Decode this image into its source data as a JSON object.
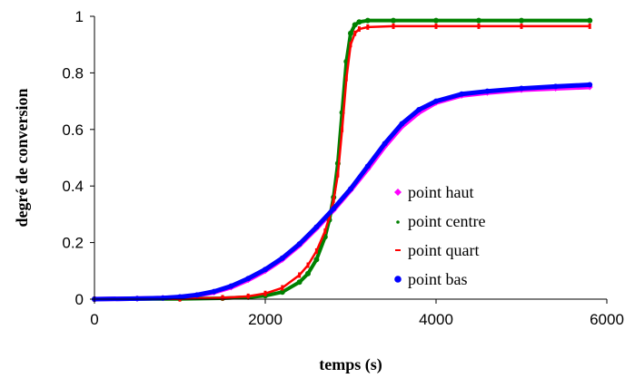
{
  "chart_data": {
    "type": "scatter",
    "title": "",
    "xlabel": "temps (s)",
    "ylabel": "degré de conversion",
    "xlim": [
      0,
      6000
    ],
    "ylim": [
      0,
      1
    ],
    "x_ticks": [
      "0",
      "2000",
      "4000",
      "6000"
    ],
    "y_ticks": [
      "0",
      "0.2",
      "0.4",
      "0.6",
      "0.8",
      "1"
    ],
    "grid": false,
    "legend_position": "right",
    "series": [
      {
        "name": "point haut",
        "color": "#ff00ff",
        "marker": "diamond",
        "x": [
          0,
          500,
          800,
          1000,
          1200,
          1400,
          1600,
          1800,
          2000,
          2200,
          2400,
          2600,
          2800,
          3000,
          3200,
          3400,
          3600,
          3800,
          4000,
          4300,
          4600,
          5000,
          5400,
          5800
        ],
        "y": [
          0,
          0.002,
          0.004,
          0.007,
          0.013,
          0.024,
          0.042,
          0.068,
          0.1,
          0.14,
          0.19,
          0.25,
          0.315,
          0.385,
          0.46,
          0.54,
          0.61,
          0.66,
          0.695,
          0.72,
          0.73,
          0.74,
          0.745,
          0.75
        ]
      },
      {
        "name": "point centre",
        "color": "#008000",
        "marker": "circle",
        "x": [
          0,
          1000,
          1500,
          1800,
          2000,
          2200,
          2400,
          2500,
          2600,
          2700,
          2750,
          2800,
          2850,
          2900,
          2950,
          3000,
          3050,
          3100,
          3200,
          3500,
          4000,
          4500,
          5000,
          5800
        ],
        "y": [
          0,
          0.001,
          0.003,
          0.007,
          0.012,
          0.025,
          0.06,
          0.09,
          0.14,
          0.22,
          0.28,
          0.36,
          0.48,
          0.66,
          0.84,
          0.94,
          0.97,
          0.98,
          0.985,
          0.985,
          0.985,
          0.985,
          0.985,
          0.985
        ]
      },
      {
        "name": "point quart",
        "color": "#ff0000",
        "marker": "dash",
        "x": [
          0,
          1000,
          1500,
          1800,
          2000,
          2200,
          2400,
          2500,
          2600,
          2700,
          2750,
          2800,
          2850,
          2900,
          2950,
          3000,
          3050,
          3100,
          3200,
          3500,
          4000,
          4500,
          5000,
          5800
        ],
        "y": [
          0,
          0.001,
          0.005,
          0.01,
          0.02,
          0.04,
          0.085,
          0.12,
          0.17,
          0.24,
          0.29,
          0.35,
          0.44,
          0.6,
          0.78,
          0.9,
          0.94,
          0.955,
          0.962,
          0.965,
          0.965,
          0.965,
          0.965,
          0.965
        ]
      },
      {
        "name": "point bas",
        "color": "#0000ff",
        "marker": "circle",
        "x": [
          0,
          500,
          800,
          1000,
          1200,
          1400,
          1600,
          1800,
          2000,
          2200,
          2400,
          2600,
          2800,
          3000,
          3200,
          3400,
          3600,
          3800,
          4000,
          4300,
          4600,
          5000,
          5400,
          5800
        ],
        "y": [
          0,
          0.002,
          0.004,
          0.008,
          0.015,
          0.027,
          0.046,
          0.073,
          0.105,
          0.145,
          0.195,
          0.255,
          0.32,
          0.39,
          0.47,
          0.55,
          0.62,
          0.67,
          0.7,
          0.725,
          0.735,
          0.745,
          0.752,
          0.758
        ]
      }
    ]
  }
}
